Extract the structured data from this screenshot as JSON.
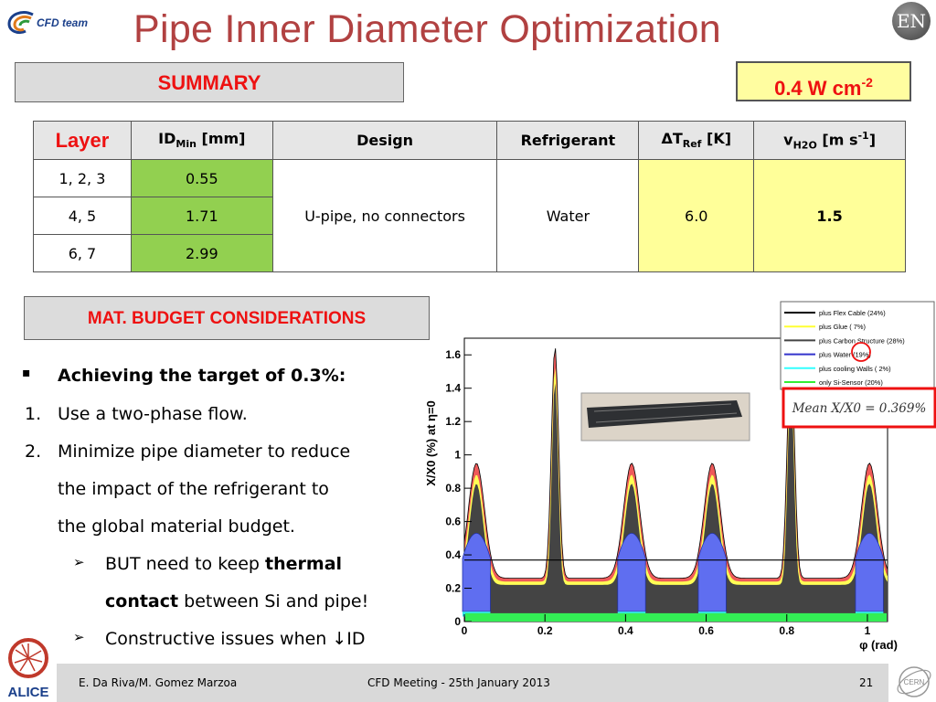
{
  "header": {
    "logo_text": "CFD team",
    "title": "Pipe Inner Diameter Optimization",
    "lang_badge": "EN"
  },
  "summary": {
    "label": "SUMMARY",
    "target_value": "0.4 W cm",
    "target_exp": "-2"
  },
  "table": {
    "headers": {
      "layer": "Layer",
      "id_min": "ID",
      "id_min_sub": "Min",
      "id_min_unit": "[mm]",
      "design": "Design",
      "refrigerant": "Refrigerant",
      "dt": "ΔT",
      "dt_sub": "Ref",
      "dt_unit": "[K]",
      "v": "v",
      "v_sub": "H2O",
      "v_unit": "[m s",
      "v_exp": "-1",
      "v_close": "]"
    },
    "rows": [
      {
        "layer": "1, 2, 3",
        "id": "0.55"
      },
      {
        "layer": "4, 5",
        "id": "1.71"
      },
      {
        "layer": "6, 7",
        "id": "2.99"
      }
    ],
    "design": "U-pipe, no connectors",
    "refrigerant": "Water",
    "dt_value": "6.0",
    "v_value": "1.5"
  },
  "mat_budget": {
    "title": "MAT. BUDGET CONSIDERATIONS",
    "b0_marker": "▪",
    "b0_text": "Achieving the target of 0.3%:",
    "b1_num": "1.",
    "b1_text": "Use a two-phase flow.",
    "b2_num": "2.",
    "b2_line1": "Minimize pipe diameter to reduce",
    "b2_line2": "the impact of the refrigerant to",
    "b2_line3": "the global material budget.",
    "s1_arrow": "➢",
    "s1_pre": "BUT need to keep ",
    "s1_bold1": "thermal",
    "s1_bold2": "contact",
    "s1_post": " between Si and pipe!",
    "s2_arrow": "➢",
    "s2_text": "Constructive issues when ↓ID"
  },
  "chart_data": {
    "type": "area",
    "ylabel": "X/X0 (%) at η=0",
    "xlabel": "φ (rad)",
    "xlim": [
      0,
      1.05
    ],
    "ylim": [
      0,
      1.7
    ],
    "xticks": [
      "0",
      "0.2",
      "0.4",
      "0.6",
      "0.8",
      "1"
    ],
    "yticks": [
      "0",
      "0.2",
      "0.4",
      "0.6",
      "0.8",
      "1",
      "1.2",
      "1.4",
      "1.6"
    ],
    "mean_line": 0.369,
    "mean_label": "Mean X/X0 = 0.369%",
    "legend": [
      {
        "label": "plus Flex Cable (24%)",
        "color": "#000000"
      },
      {
        "label": "plus Glue ( 7%)",
        "color": "#ffff33"
      },
      {
        "label": "plus Carbon Structure (28%)",
        "color": "#444444"
      },
      {
        "label": "plus Water (19%)",
        "color": "#3333cc"
      },
      {
        "label": "plus cooling Walls ( 2%)",
        "color": "#33ffff"
      },
      {
        "label": "only Si-Sensor (20%)",
        "color": "#33ee33"
      }
    ],
    "peaks": [
      {
        "x": 0.03,
        "y": 0.95
      },
      {
        "x": 0.225,
        "y": 1.65
      },
      {
        "x": 0.415,
        "y": 0.95
      },
      {
        "x": 0.615,
        "y": 0.95
      },
      {
        "x": 0.81,
        "y": 1.65
      },
      {
        "x": 1.005,
        "y": 0.95
      }
    ],
    "baseline": 0.26,
    "si_level": 0.05,
    "water_peak": 0.56
  },
  "footer": {
    "authors": "E. Da Riva/M. Gomez Marzoa",
    "meeting": "CFD Meeting - 25th January 2013",
    "page": "21"
  },
  "colors": {
    "title": "#b14141",
    "accent_red": "#ee1111",
    "green_cell": "#92d050",
    "yellow_cell": "#ffff99"
  }
}
